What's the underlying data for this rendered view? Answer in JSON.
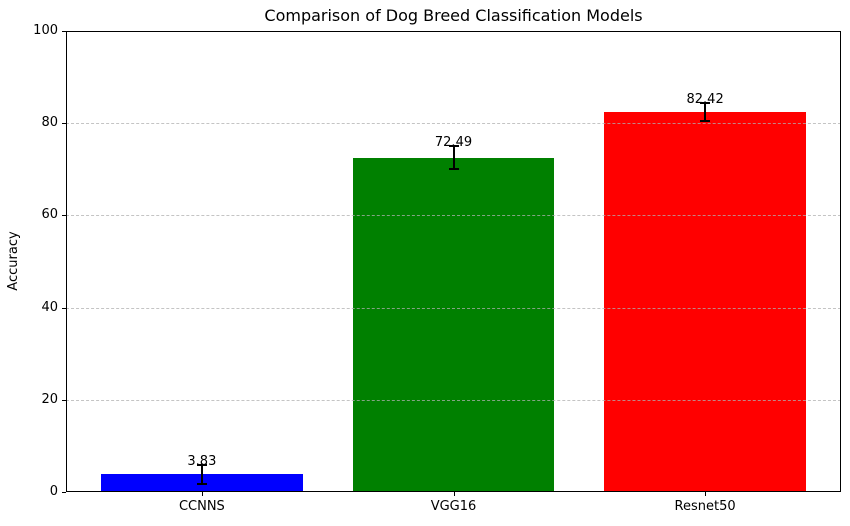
{
  "chart_data": {
    "type": "bar",
    "title": "Comparison of Dog Breed Classification Models",
    "xlabel": "",
    "ylabel": "Accuracy",
    "categories": [
      "CCNNS",
      "VGG16",
      "Resnet50"
    ],
    "values": [
      3.83,
      72.49,
      82.42
    ],
    "value_labels": [
      "3.83",
      "72.49",
      "82.42"
    ],
    "errors": [
      2.0,
      2.5,
      2.0
    ],
    "bar_colors": [
      "#0000ff",
      "#008000",
      "#ff0000"
    ],
    "error_bar_color": "#000000",
    "ylim": [
      0,
      100
    ],
    "yticks": [
      0,
      20,
      40,
      60,
      80,
      100
    ],
    "grid": {
      "axis": "y",
      "linestyle": "dashed",
      "color": "#b0b0b0",
      "alpha": 0.7,
      "drawn_above_bars": true
    },
    "legend": "none",
    "background": "#ffffff"
  }
}
